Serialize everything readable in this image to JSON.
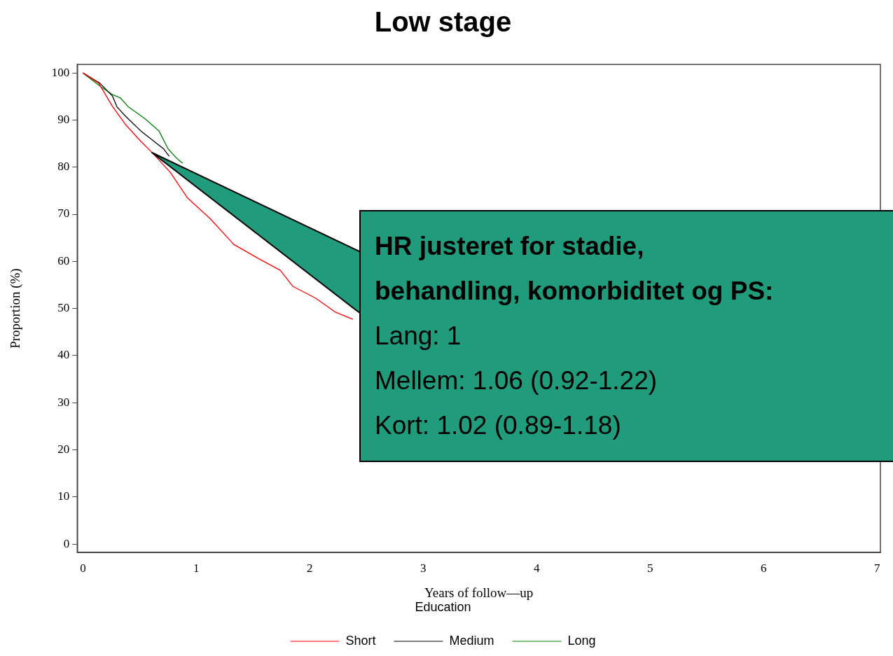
{
  "chart_data": {
    "type": "line",
    "title": "Low stage",
    "xlabel": "Years of follow—up",
    "ylabel": "Proportion (%)",
    "legend_title": "Education",
    "legend": "bottom",
    "grid": false,
    "marker": "none",
    "line_style": "solid",
    "xlim": [
      -0.05,
      7.03
    ],
    "xticks": [
      0,
      1,
      2,
      3,
      4,
      5,
      6,
      7
    ],
    "ylim": [
      -1.8,
      101.8
    ],
    "yticks": [
      0,
      10,
      20,
      30,
      40,
      50,
      60,
      70,
      80,
      90,
      100
    ],
    "series": [
      {
        "name": "Short",
        "color": "#ff0000",
        "x": [
          0,
          0.14,
          0.26,
          0.38,
          0.51,
          0.61,
          0.77,
          0.92,
          1.12,
          1.33,
          1.54,
          1.74,
          1.85,
          2.05,
          2.22,
          2.38
        ],
        "values": [
          100,
          97.8,
          92.9,
          88.9,
          85.5,
          83.1,
          78.9,
          73.5,
          69.1,
          63.6,
          60.7,
          58.1,
          54.7,
          52.2,
          49.3,
          47.7
        ]
      },
      {
        "name": "Medium",
        "color": "#000000",
        "x": [
          0,
          0.15,
          0.26,
          0.3,
          0.38,
          0.51,
          0.61,
          0.71,
          0.76
        ],
        "values": [
          100,
          97.8,
          95.1,
          92.8,
          90.7,
          87.7,
          85.8,
          83.9,
          82.3
        ]
      },
      {
        "name": "Long",
        "color": "#008000",
        "x": [
          0,
          0.15,
          0.26,
          0.33,
          0.4,
          0.55,
          0.67,
          0.75,
          0.83,
          0.88
        ],
        "values": [
          100,
          97.2,
          95.4,
          94.7,
          92.8,
          90.2,
          87.7,
          83.9,
          81.8,
          80.8
        ]
      }
    ],
    "annotations": [
      "HR justeret for stadie,\nbehandling, komorbiditet og PS:\nLang: 1\nMellem: 1.06 (0.92-1.22)\nKort: 1.02 (0.89-1.18)"
    ]
  }
}
